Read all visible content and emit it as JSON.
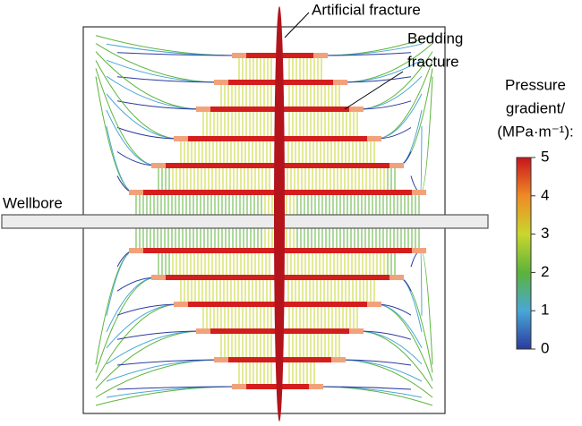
{
  "labels": {
    "artificial_fracture": "Artificial fracture",
    "bedding_fracture": [
      "Bedding",
      "fracture"
    ],
    "wellbore": "Wellbore"
  },
  "colorbar": {
    "title": [
      "Pressure",
      "gradient/",
      "(MPa·m⁻¹):"
    ],
    "lim": [
      0,
      5
    ],
    "ticks": [
      0,
      1,
      2,
      3,
      4,
      5
    ]
  }
}
